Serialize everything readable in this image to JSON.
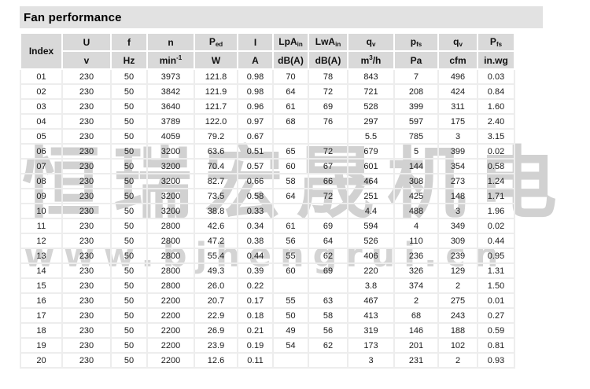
{
  "title": "Fan performance",
  "watermark": {
    "cjk_text": "恒瑞宏晟机电",
    "url_text": "www.bjhengrui.cn"
  },
  "table": {
    "columns": [
      {
        "label": "Index"
      },
      {
        "sym": "U",
        "unit": "v"
      },
      {
        "sym": "f",
        "unit": "Hz"
      },
      {
        "sym": "n",
        "unit": "min",
        "unit_sup": "-1"
      },
      {
        "sym": "P",
        "sym_sub": "ed",
        "unit": "W"
      },
      {
        "sym": "I",
        "unit": "A"
      },
      {
        "sym": "LpA",
        "sym_sub": "in",
        "unit": "dB(A)"
      },
      {
        "sym": "LwA",
        "sym_sub": "in",
        "unit": "dB(A)"
      },
      {
        "sym": "q",
        "sym_sub": "v",
        "unit": "m",
        "unit_sup": "3",
        "unit_post": "/h"
      },
      {
        "sym": "p",
        "sym_sub": "fs",
        "unit": "Pa"
      },
      {
        "sym": "q",
        "sym_sub": "v",
        "unit": "cfm"
      },
      {
        "sym": "P",
        "sym_sub": "fs",
        "unit": "in.wg"
      }
    ],
    "rows": [
      [
        "01",
        "230",
        "50",
        "3973",
        "121.8",
        "0.98",
        "70",
        "78",
        "843",
        "7",
        "496",
        "0.03"
      ],
      [
        "02",
        "230",
        "50",
        "3842",
        "121.9",
        "0.98",
        "64",
        "72",
        "721",
        "208",
        "424",
        "0.84"
      ],
      [
        "03",
        "230",
        "50",
        "3640",
        "121.7",
        "0.96",
        "61",
        "69",
        "528",
        "399",
        "311",
        "1.60"
      ],
      [
        "04",
        "230",
        "50",
        "3789",
        "122.0",
        "0.97",
        "68",
        "76",
        "297",
        "597",
        "175",
        "2.40"
      ],
      [
        "05",
        "230",
        "50",
        "4059",
        "79.2",
        "0.67",
        "",
        "",
        "5.5",
        "785",
        "3",
        "3.15"
      ],
      [
        "06",
        "230",
        "50",
        "3200",
        "63.6",
        "0.51",
        "65",
        "72",
        "679",
        "5",
        "399",
        "0.02"
      ],
      [
        "07",
        "230",
        "50",
        "3200",
        "70.4",
        "0.57",
        "60",
        "67",
        "601",
        "144",
        "354",
        "0.58"
      ],
      [
        "08",
        "230",
        "50",
        "3200",
        "82.7",
        "0.66",
        "58",
        "66",
        "464",
        "308",
        "273",
        "1.24"
      ],
      [
        "09",
        "230",
        "50",
        "3200",
        "73.5",
        "0.58",
        "64",
        "72",
        "251",
        "425",
        "148",
        "1.71"
      ],
      [
        "10",
        "230",
        "50",
        "3200",
        "38.8",
        "0.33",
        "",
        "",
        "4.4",
        "488",
        "3",
        "1.96"
      ],
      [
        "11",
        "230",
        "50",
        "2800",
        "42.6",
        "0.34",
        "61",
        "69",
        "594",
        "4",
        "349",
        "0.02"
      ],
      [
        "12",
        "230",
        "50",
        "2800",
        "47.2",
        "0.38",
        "56",
        "64",
        "526",
        "110",
        "309",
        "0.44"
      ],
      [
        "13",
        "230",
        "50",
        "2800",
        "55.4",
        "0.44",
        "55",
        "62",
        "406",
        "236",
        "239",
        "0.95"
      ],
      [
        "14",
        "230",
        "50",
        "2800",
        "49.3",
        "0.39",
        "60",
        "69",
        "220",
        "326",
        "129",
        "1.31"
      ],
      [
        "15",
        "230",
        "50",
        "2800",
        "26.0",
        "0.22",
        "",
        "",
        "3.8",
        "374",
        "2",
        "1.50"
      ],
      [
        "16",
        "230",
        "50",
        "2200",
        "20.7",
        "0.17",
        "55",
        "63",
        "467",
        "2",
        "275",
        "0.01"
      ],
      [
        "17",
        "230",
        "50",
        "2200",
        "22.9",
        "0.18",
        "50",
        "58",
        "413",
        "68",
        "243",
        "0.27"
      ],
      [
        "18",
        "230",
        "50",
        "2200",
        "26.9",
        "0.21",
        "49",
        "56",
        "319",
        "146",
        "188",
        "0.59"
      ],
      [
        "19",
        "230",
        "50",
        "2200",
        "23.9",
        "0.19",
        "54",
        "62",
        "173",
        "201",
        "102",
        "0.81"
      ],
      [
        "20",
        "230",
        "50",
        "2200",
        "12.6",
        "0.11",
        "",
        "",
        "3",
        "231",
        "2",
        "0.93"
      ]
    ]
  },
  "colors": {
    "title_bar_bg": "#e2e2e2",
    "header_cell_bg": "#d9d9d9",
    "grid_line": "#ededed",
    "watermark_gray": "#8f8f8f",
    "text": "#1c1c1c"
  }
}
